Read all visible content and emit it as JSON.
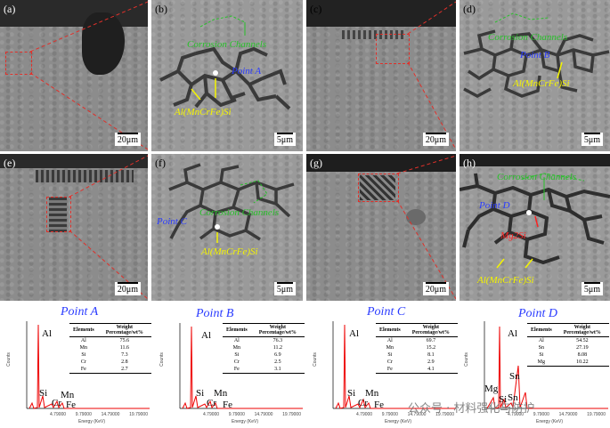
{
  "panels": {
    "a": {
      "label": "(a)",
      "scale": "20μm"
    },
    "b": {
      "label": "(b)",
      "scale": "5μm",
      "ann_channels": "Corrosion Channels",
      "ann_point": "Point A",
      "ann_phase": "Al(MnCrFe)Si"
    },
    "c": {
      "label": "(c)",
      "scale": "20μm"
    },
    "d": {
      "label": "(d)",
      "scale": "5μm",
      "ann_channels": "Corrosion Channels",
      "ann_point": "Point B",
      "ann_phase": "Al(MnCrFe)Si"
    },
    "e": {
      "label": "(e)",
      "scale": "20μm"
    },
    "f": {
      "label": "(f)",
      "scale": "5μm",
      "ann_channels": "Corrosion Channels",
      "ann_point": "Point C",
      "ann_phase": "Al(MnCrFe)Si"
    },
    "g": {
      "label": "(g)",
      "scale": "20μm"
    },
    "h": {
      "label": "(h)",
      "scale": "5μm",
      "ann_channels": "Corrosion Channels",
      "ann_point": "Point D",
      "ann_phase2": "Mg2Si",
      "ann_phase": "Al(MnCrFe)Si"
    }
  },
  "eds": {
    "A": {
      "title": "Point A",
      "col_elements": "Elements",
      "col_weight": "Weight Percentage/wt%",
      "rows": [
        [
          "Al",
          "75.6"
        ],
        [
          "Mn",
          "11.6"
        ],
        [
          "Si",
          "7.3"
        ],
        [
          "Cr",
          "2.8"
        ],
        [
          "Fe",
          "2.7"
        ]
      ],
      "peak_labels": [
        "Al",
        "Si",
        "Cr",
        "Mn",
        "Fe"
      ],
      "y_label": "Counts",
      "x_label": "Energy (KeV)",
      "x_ticks": [
        "4.79000",
        "9.79000",
        "14.79000",
        "19.79000"
      ]
    },
    "B": {
      "title": "Point B",
      "col_elements": "Elements",
      "col_weight": "Weight Percentage/wt%",
      "rows": [
        [
          "Al",
          "76.3"
        ],
        [
          "Mn",
          "11.2"
        ],
        [
          "Si",
          "6.9"
        ],
        [
          "Cr",
          "2.5"
        ],
        [
          "Fe",
          "3.1"
        ]
      ],
      "peak_labels": [
        "Al",
        "Si",
        "Cr",
        "Mn",
        "Fe"
      ],
      "y_label": "Counts",
      "x_label": "Energy (KeV)",
      "x_ticks": [
        "4.79000",
        "9.79000",
        "14.79000",
        "19.79000"
      ]
    },
    "C": {
      "title": "Point C",
      "col_elements": "Elements",
      "col_weight": "Weight Percentage/wt%",
      "rows": [
        [
          "Al",
          "69.7"
        ],
        [
          "Mn",
          "15.2"
        ],
        [
          "Si",
          "8.1"
        ],
        [
          "Cr",
          "2.9"
        ],
        [
          "Fe",
          "4.1"
        ]
      ],
      "peak_labels": [
        "Al",
        "Si",
        "Cr",
        "Mn",
        "Fe"
      ],
      "y_label": "Counts",
      "x_label": "Energy (KeV)",
      "x_ticks": [
        "4.79000",
        "9.79000",
        "14.79000",
        "19.79000"
      ]
    },
    "D": {
      "title": "Point D",
      "col_elements": "Elements",
      "col_weight": "Weight Percentage/wt%",
      "rows": [
        [
          "Al",
          "54.52"
        ],
        [
          "Sn",
          "27.19"
        ],
        [
          "Si",
          "8.08"
        ],
        [
          "Mg",
          "10.22"
        ]
      ],
      "peak_labels": [
        "Al",
        "Mg",
        "Si",
        "Sn",
        "Sn"
      ],
      "y_label": "Counts",
      "x_label": "Energy (KeV)",
      "x_ticks": [
        "4.79000",
        "9.79000",
        "14.79000",
        "19.79000"
      ]
    }
  },
  "watermark": "公众号 · 材料强化与防护"
}
